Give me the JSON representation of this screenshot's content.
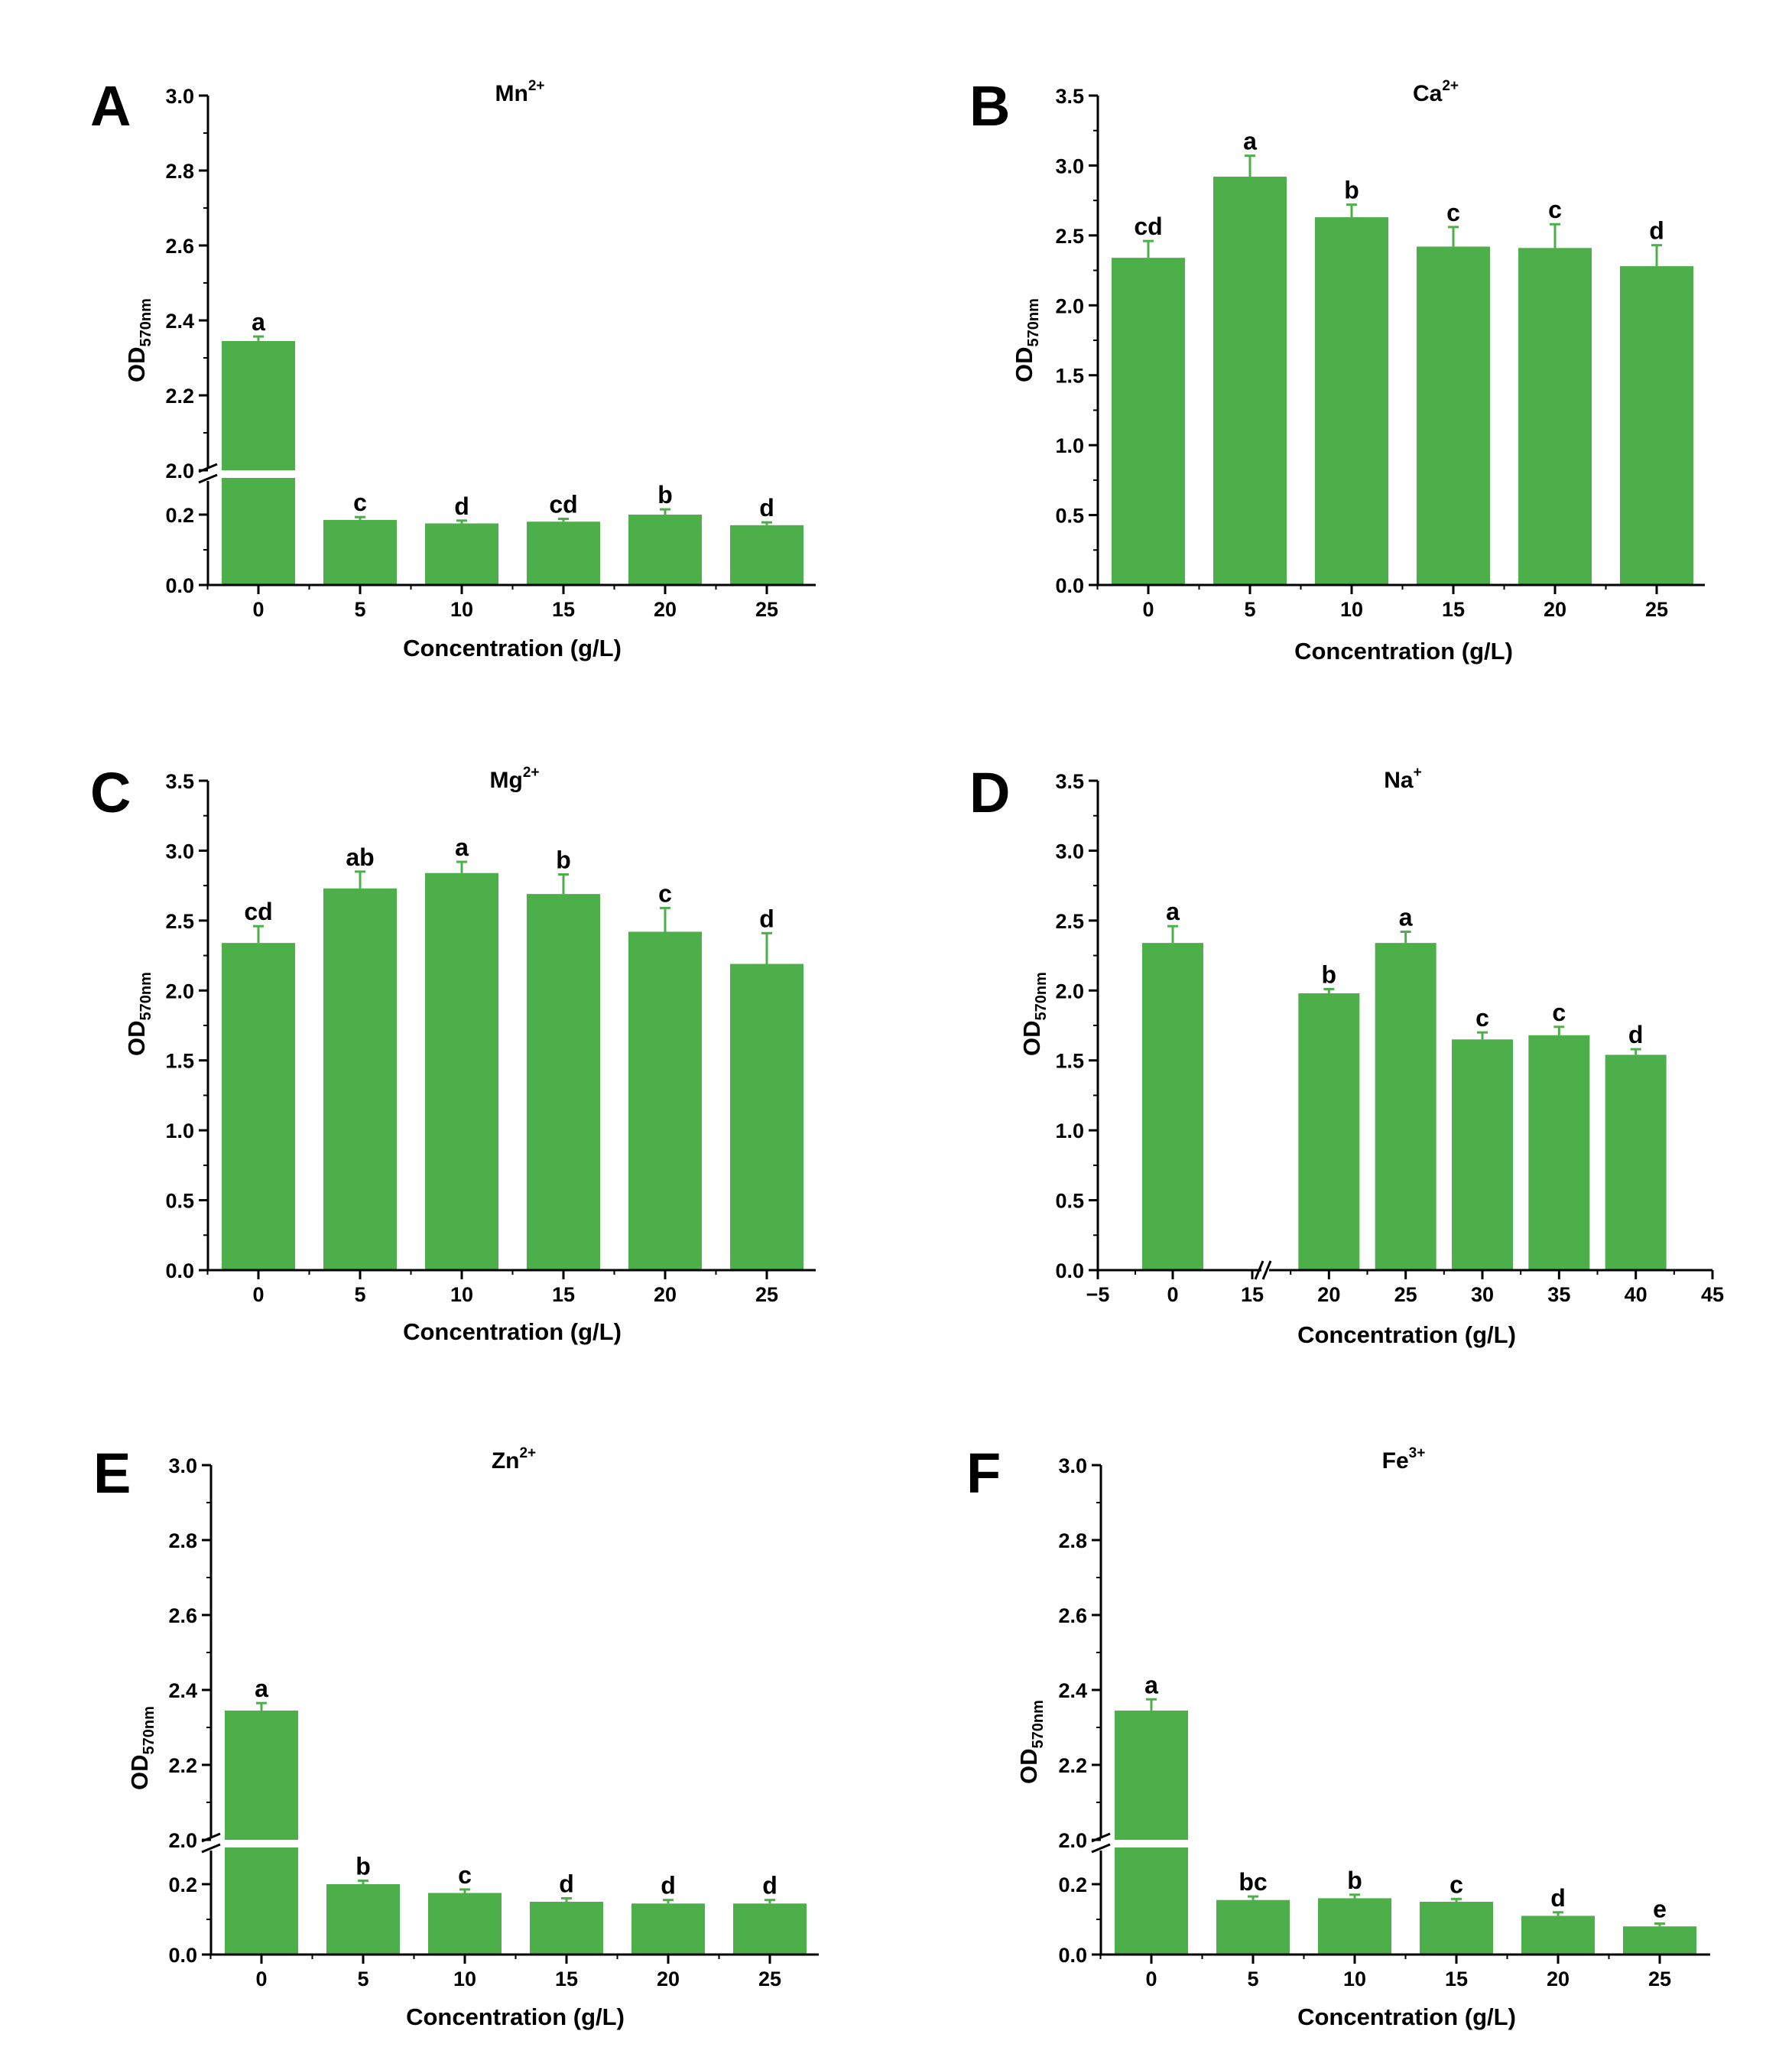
{
  "figure": {
    "bar_color": "#4daf4a",
    "axis_color": "#000000",
    "ylabel_main": "OD",
    "ylabel_sub": "570nm",
    "xlabel": "Concentration (g/L)"
  },
  "chart_data": [
    {
      "panel": "A",
      "title_base": "Mn",
      "title_sup": "2+",
      "type": "bar",
      "broken_y": true,
      "xlabel": "Concentration (g/L)",
      "categories": [
        "0",
        "5",
        "10",
        "15",
        "20",
        "25"
      ],
      "values": [
        2.345,
        0.185,
        0.175,
        0.18,
        0.2,
        0.17
      ],
      "errors": [
        0.012,
        0.008,
        0.008,
        0.008,
        0.015,
        0.008
      ],
      "letters": [
        "a",
        "c",
        "d",
        "cd",
        "b",
        "d"
      ],
      "y_lower_range": [
        0.0,
        0.3
      ],
      "y_lower_ticks": [
        "0.0",
        "0.2"
      ],
      "y_upper_range": [
        2.0,
        3.0
      ],
      "y_upper_ticks": [
        "2.0",
        "2.2",
        "2.4",
        "2.6",
        "2.8",
        "3.0"
      ]
    },
    {
      "panel": "B",
      "title_base": "Ca",
      "title_sup": "2+",
      "type": "bar",
      "broken_y": false,
      "xlabel": "Concentration (g/L)",
      "categories": [
        "0",
        "5",
        "10",
        "15",
        "20",
        "25"
      ],
      "values": [
        2.34,
        2.92,
        2.63,
        2.42,
        2.41,
        2.28
      ],
      "errors": [
        0.12,
        0.15,
        0.09,
        0.14,
        0.17,
        0.15
      ],
      "letters": [
        "cd",
        "a",
        "b",
        "c",
        "c",
        "d"
      ],
      "ylim": [
        0,
        3.5
      ],
      "y_ticks": [
        "0.0",
        "0.5",
        "1.0",
        "1.5",
        "2.0",
        "2.5",
        "3.0",
        "3.5"
      ]
    },
    {
      "panel": "C",
      "title_base": "Mg",
      "title_sup": "2+",
      "type": "bar",
      "broken_y": false,
      "xlabel": "Concentration (g/L)",
      "categories": [
        "0",
        "5",
        "10",
        "15",
        "20",
        "25"
      ],
      "values": [
        2.34,
        2.73,
        2.84,
        2.69,
        2.42,
        2.19
      ],
      "errors": [
        0.12,
        0.12,
        0.08,
        0.14,
        0.17,
        0.22
      ],
      "letters": [
        "cd",
        "ab",
        "a",
        "b",
        "c",
        "d"
      ],
      "ylim": [
        0,
        3.5
      ],
      "y_ticks": [
        "0.0",
        "0.5",
        "1.0",
        "1.5",
        "2.0",
        "2.5",
        "3.0",
        "3.5"
      ]
    },
    {
      "panel": "D",
      "title_base": "Na",
      "title_sup": "+",
      "type": "bar",
      "broken_y": false,
      "broken_x": true,
      "xlabel": "Concentration (g/L)",
      "categories": [
        "0",
        "20",
        "25",
        "30",
        "35",
        "40"
      ],
      "values": [
        2.34,
        1.98,
        2.34,
        1.65,
        1.68,
        1.54
      ],
      "errors": [
        0.12,
        0.03,
        0.08,
        0.05,
        0.06,
        0.04
      ],
      "letters": [
        "a",
        "b",
        "a",
        "c",
        "c",
        "d"
      ],
      "ylim": [
        0,
        3.5
      ],
      "y_ticks": [
        "0.0",
        "0.5",
        "1.0",
        "1.5",
        "2.0",
        "2.5",
        "3.0",
        "3.5"
      ],
      "x_ticks": [
        "−5",
        "0",
        "15",
        "20",
        "25",
        "30",
        "35",
        "40",
        "45"
      ]
    },
    {
      "panel": "E",
      "title_base": "Zn",
      "title_sup": "2+",
      "type": "bar",
      "broken_y": true,
      "xlabel": "Concentration (g/L)",
      "categories": [
        "0",
        "5",
        "10",
        "15",
        "20",
        "25"
      ],
      "values": [
        2.345,
        0.2,
        0.175,
        0.15,
        0.145,
        0.145
      ],
      "errors": [
        0.02,
        0.01,
        0.01,
        0.01,
        0.01,
        0.01
      ],
      "letters": [
        "a",
        "b",
        "c",
        "d",
        "d",
        "d"
      ],
      "y_lower_range": [
        0.0,
        0.3
      ],
      "y_lower_ticks": [
        "0.0",
        "0.2"
      ],
      "y_upper_range": [
        2.0,
        3.0
      ],
      "y_upper_ticks": [
        "2.0",
        "2.2",
        "2.4",
        "2.6",
        "2.8",
        "3.0"
      ]
    },
    {
      "panel": "F",
      "title_base": "Fe",
      "title_sup": "3+",
      "type": "bar",
      "broken_y": true,
      "xlabel": "Concentration (g/L)",
      "categories": [
        "0",
        "5",
        "10",
        "15",
        "20",
        "25"
      ],
      "values": [
        2.345,
        0.155,
        0.16,
        0.15,
        0.11,
        0.08
      ],
      "errors": [
        0.03,
        0.01,
        0.01,
        0.008,
        0.01,
        0.008
      ],
      "letters": [
        "a",
        "bc",
        "b",
        "c",
        "d",
        "e"
      ],
      "y_lower_range": [
        0.0,
        0.3
      ],
      "y_lower_ticks": [
        "0.0",
        "0.2"
      ],
      "y_upper_range": [
        2.0,
        3.0
      ],
      "y_upper_ticks": [
        "2.0",
        "2.2",
        "2.4",
        "2.6",
        "2.8",
        "3.0"
      ]
    }
  ]
}
